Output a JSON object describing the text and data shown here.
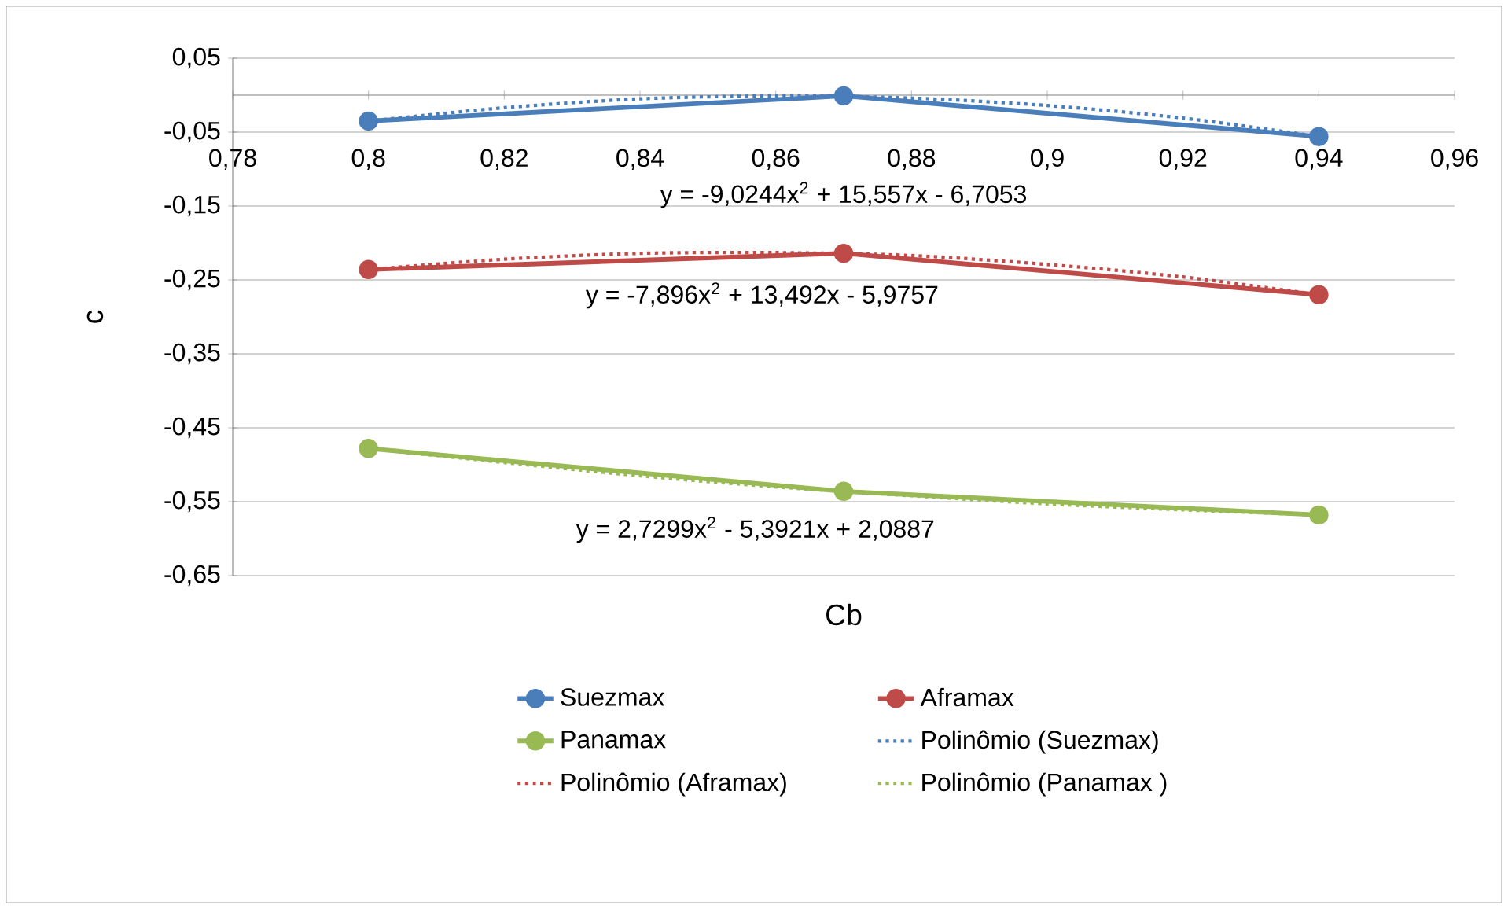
{
  "chart_data": {
    "type": "line",
    "xlabel": "Cb",
    "ylabel": "c",
    "xlim": [
      0.78,
      0.96
    ],
    "ylim": [
      -0.65,
      0.05
    ],
    "xticks": [
      {
        "value": 0.78,
        "label": "0,78"
      },
      {
        "value": 0.8,
        "label": "0,8"
      },
      {
        "value": 0.82,
        "label": "0,82"
      },
      {
        "value": 0.84,
        "label": "0,84"
      },
      {
        "value": 0.86,
        "label": "0,86"
      },
      {
        "value": 0.88,
        "label": "0,88"
      },
      {
        "value": 0.9,
        "label": "0,9"
      },
      {
        "value": 0.92,
        "label": "0,92"
      },
      {
        "value": 0.94,
        "label": "0,94"
      },
      {
        "value": 0.96,
        "label": "0,96"
      }
    ],
    "yticks": [
      {
        "value": 0.05,
        "label": "0,05"
      },
      {
        "value": -0.05,
        "label": "-0,05"
      },
      {
        "value": -0.15,
        "label": "-0,15"
      },
      {
        "value": -0.25,
        "label": "-0,25"
      },
      {
        "value": -0.35,
        "label": "-0,35"
      },
      {
        "value": -0.45,
        "label": "-0,45"
      },
      {
        "value": -0.55,
        "label": "-0,55"
      },
      {
        "value": -0.65,
        "label": "-0,65"
      }
    ],
    "grid": "y",
    "legend": "bottom",
    "series": [
      {
        "name": "Suezmax",
        "color": "#4a7ebb",
        "marker": "circle",
        "line_style": "solid",
        "x": [
          0.8,
          0.87,
          0.94
        ],
        "values": [
          -0.035,
          -0.001,
          -0.056
        ]
      },
      {
        "name": "Aframax",
        "color": "#be4b48",
        "marker": "circle",
        "line_style": "solid",
        "x": [
          0.8,
          0.87,
          0.94
        ],
        "values": [
          -0.236,
          -0.214,
          -0.27
        ]
      },
      {
        "name": "Panamax",
        "color": "#98b954",
        "marker": "circle",
        "line_style": "solid",
        "x": [
          0.8,
          0.87,
          0.94
        ],
        "values": [
          -0.478,
          -0.536,
          -0.568
        ]
      },
      {
        "name": "Polinômio (Suezmax)",
        "color": "#4a7ebb",
        "marker": "none",
        "line_style": "dotted",
        "x": [
          0.8,
          0.82,
          0.84,
          0.86,
          0.88,
          0.9,
          0.92,
          0.94
        ],
        "values": [
          -0.035,
          -0.017,
          -0.005,
          -0.001,
          -0.004,
          -0.014,
          -0.031,
          -0.056
        ]
      },
      {
        "name": "Polinômio (Aframax)",
        "color": "#be4b48",
        "marker": "none",
        "line_style": "dotted",
        "x": [
          0.8,
          0.82,
          0.84,
          0.86,
          0.88,
          0.9,
          0.92,
          0.94
        ],
        "values": [
          -0.236,
          -0.222,
          -0.214,
          -0.213,
          -0.217,
          -0.229,
          -0.246,
          -0.27
        ]
      },
      {
        "name": "Polinômio (Panamax )",
        "color": "#98b954",
        "marker": "none",
        "line_style": "dotted",
        "x": [
          0.8,
          0.82,
          0.84,
          0.86,
          0.88,
          0.9,
          0.92,
          0.94
        ],
        "values": [
          -0.478,
          -0.497,
          -0.515,
          -0.53,
          -0.542,
          -0.553,
          -0.561,
          -0.568
        ]
      }
    ],
    "annotations": [
      "y = -9,0244x$^{2}$ + 15,557x - 6,7053",
      "y = -7,896x$^{2}$ + 13,492x - 5,9757",
      "y = 2,7299x$^{2}$ - 5,3921x + 2,0887"
    ]
  }
}
